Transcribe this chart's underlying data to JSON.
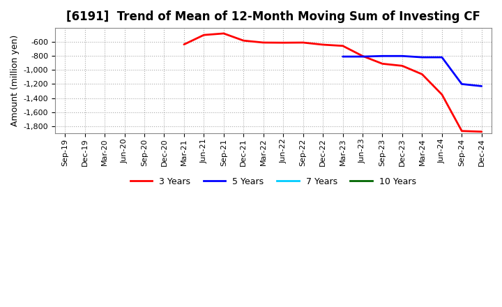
{
  "title": "[6191]  Trend of Mean of 12-Month Moving Sum of Investing CF",
  "ylabel": "Amount (million yen)",
  "background_color": "#ffffff",
  "plot_bg_color": "#ffffff",
  "grid_color": "#aaaaaa",
  "ylim": [
    -1900,
    -400
  ],
  "yticks": [
    -1800,
    -1600,
    -1400,
    -1200,
    -1000,
    -800,
    -600
  ],
  "series": {
    "3years": {
      "color": "#ff0000",
      "dates": [
        "Mar-21",
        "Jun-21",
        "Sep-21",
        "Dec-21",
        "Mar-22",
        "Jun-22",
        "Sep-22",
        "Dec-22",
        "Mar-23",
        "Jun-23",
        "Sep-23",
        "Dec-23",
        "Mar-24",
        "Jun-24",
        "Sep-24",
        "Dec-24"
      ],
      "values": [
        -635,
        -500,
        -478,
        -580,
        -608,
        -610,
        -608,
        -638,
        -655,
        -800,
        -910,
        -940,
        -1060,
        -1350,
        -1870,
        -1880
      ]
    },
    "5years": {
      "color": "#0000ff",
      "dates": [
        "Mar-23",
        "Jun-23",
        "Sep-23",
        "Dec-23",
        "Mar-24",
        "Jun-24",
        "Sep-24",
        "Dec-24"
      ],
      "values": [
        -808,
        -808,
        -800,
        -800,
        -818,
        -818,
        -1200,
        -1230
      ]
    },
    "7years": {
      "color": "#00ccff",
      "dates": [],
      "values": []
    },
    "10years": {
      "color": "#006600",
      "dates": [],
      "values": []
    }
  },
  "legend_labels": [
    "3 Years",
    "5 Years",
    "7 Years",
    "10 Years"
  ],
  "legend_colors": [
    "#ff0000",
    "#0000ff",
    "#00ccff",
    "#006600"
  ],
  "xtick_labels": [
    "Sep-19",
    "Dec-19",
    "Mar-20",
    "Jun-20",
    "Sep-20",
    "Dec-20",
    "Mar-21",
    "Jun-21",
    "Sep-21",
    "Dec-21",
    "Mar-22",
    "Jun-22",
    "Sep-22",
    "Dec-22",
    "Mar-23",
    "Jun-23",
    "Sep-23",
    "Dec-23",
    "Mar-24",
    "Jun-24",
    "Sep-24",
    "Dec-24"
  ],
  "title_fontsize": 12,
  "label_fontsize": 9,
  "tick_fontsize": 8
}
